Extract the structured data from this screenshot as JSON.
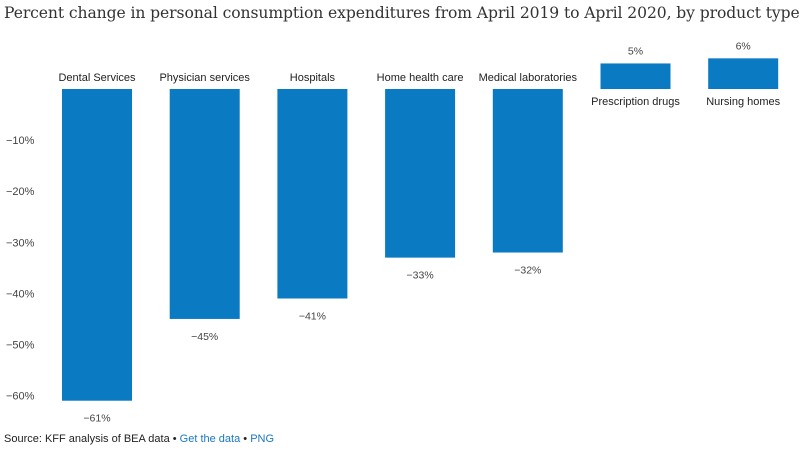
{
  "chart_data": {
    "type": "bar",
    "title": "Percent change in personal consumption expenditures from April 2019 to April 2020, by product type",
    "categories": [
      "Dental Services",
      "Physician services",
      "Hospitals",
      "Home health care",
      "Medical laboratories",
      "Prescription drugs",
      "Nursing homes"
    ],
    "values": [
      -61,
      -45,
      -41,
      -33,
      -32,
      5,
      6
    ],
    "value_labels": [
      "−61%",
      "−45%",
      "−41%",
      "−33%",
      "−32%",
      "5%",
      "6%"
    ],
    "y_ticks": [
      -10,
      -20,
      -30,
      -40,
      -50,
      -60
    ],
    "y_tick_labels": [
      "−10%",
      "−20%",
      "−30%",
      "−40%",
      "−50%",
      "−60%"
    ],
    "ylim": [
      -62,
      7
    ],
    "xlabel": "",
    "ylabel": "",
    "grid": false,
    "bar_color": "#0a7bc2"
  },
  "footer": {
    "source": "Source: KFF analysis of BEA data",
    "separator": " • ",
    "get_data": "Get the data",
    "png": "PNG"
  }
}
